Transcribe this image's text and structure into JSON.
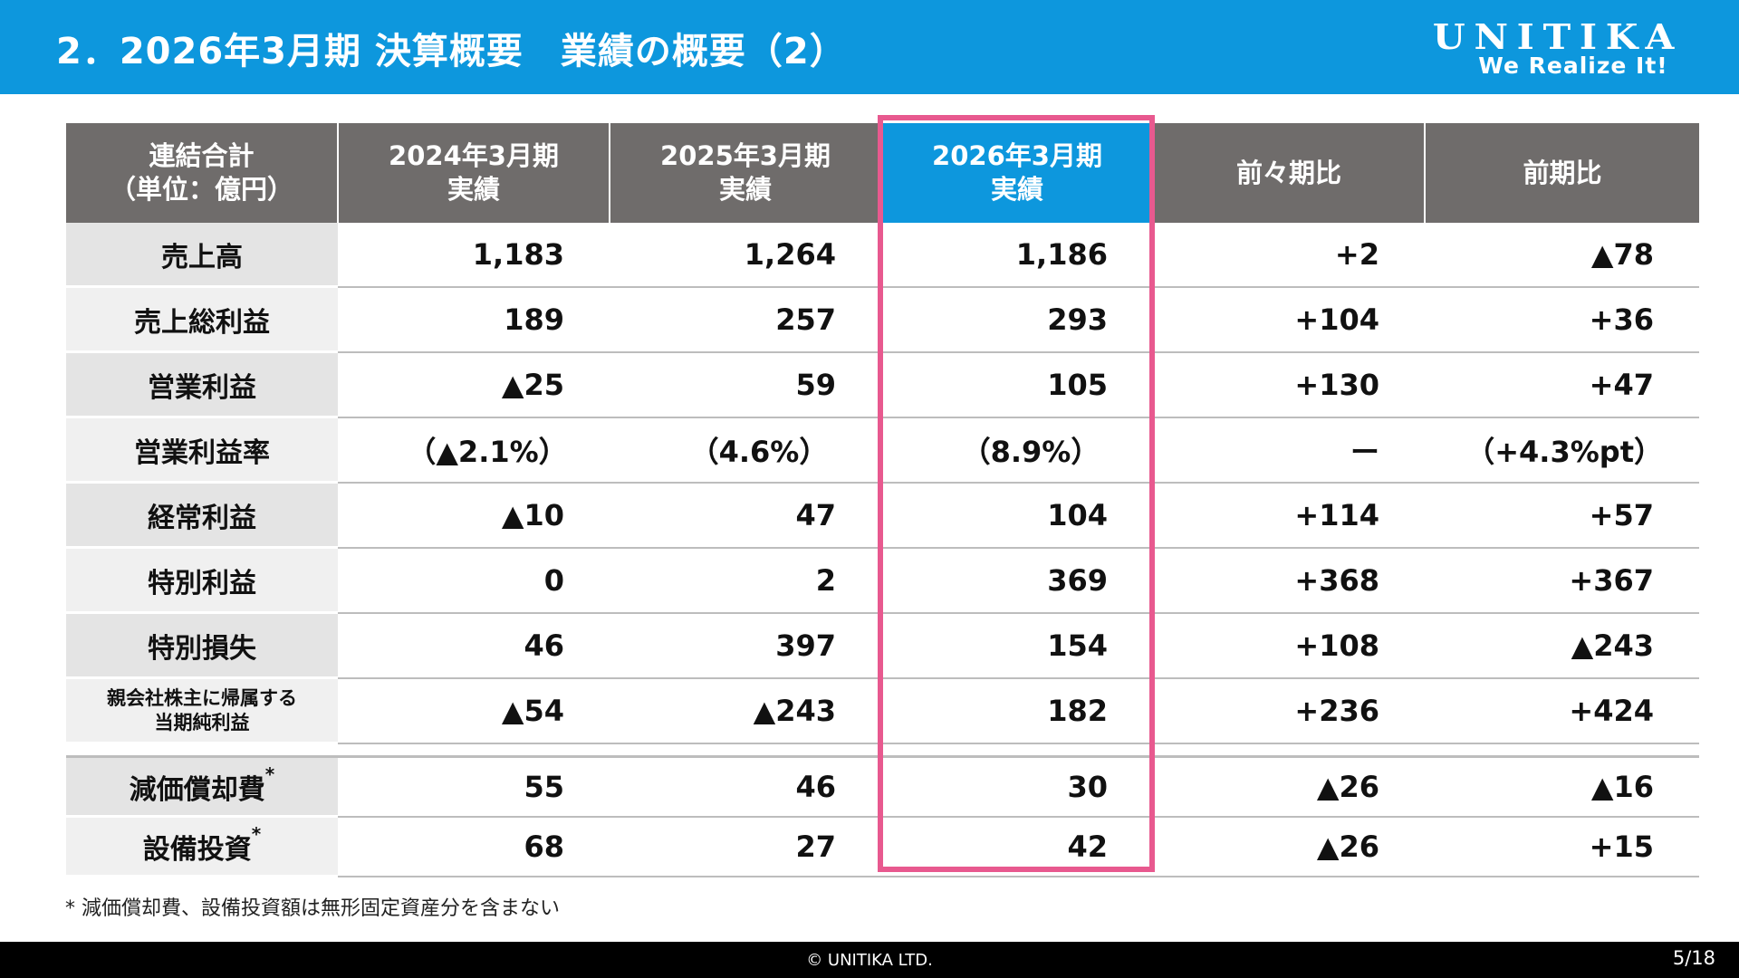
{
  "header": {
    "title": "2．2026年3月期 決算概要　業績の概要（2）",
    "logo_brand": "UNITIKA",
    "logo_tagline": "We Realize It!"
  },
  "table": {
    "columns": [
      {
        "line1": "連結合計",
        "line2": "（単位：億円）"
      },
      {
        "line1": "2024年3月期",
        "line2": "実績"
      },
      {
        "line1": "2025年3月期",
        "line2": "実績"
      },
      {
        "line1": "2026年3月期",
        "line2": "実績"
      },
      {
        "line1": "前々期比",
        "line2": ""
      },
      {
        "line1": "前期比",
        "line2": ""
      }
    ],
    "rows": [
      {
        "label": "売上高",
        "values": [
          "1,183",
          "1,264",
          "1,186",
          "+2",
          "▲78"
        ]
      },
      {
        "label": "売上総利益",
        "values": [
          "189",
          "257",
          "293",
          "+104",
          "+36"
        ]
      },
      {
        "label": "営業利益",
        "values": [
          "▲25",
          "59",
          "105",
          "+130",
          "+47"
        ]
      },
      {
        "label": "営業利益率",
        "values": [
          "（▲2.1%）",
          "（4.6%）",
          "（8.9%）",
          "ー",
          "（+4.3%pt）"
        ]
      },
      {
        "label": "経常利益",
        "values": [
          "▲10",
          "47",
          "104",
          "+114",
          "+57"
        ]
      },
      {
        "label": "特別利益",
        "values": [
          "0",
          "2",
          "369",
          "+368",
          "+367"
        ]
      },
      {
        "label": "特別損失",
        "values": [
          "46",
          "397",
          "154",
          "+108",
          "▲243"
        ]
      },
      {
        "label_line1": "親会社株主に帰属する",
        "label_line2": "当期純利益",
        "values": [
          "▲54",
          "▲243",
          "182",
          "+236",
          "+424"
        ]
      }
    ],
    "sub_rows": [
      {
        "label": "減価償却費",
        "mark": "*",
        "values": [
          "55",
          "46",
          "30",
          "▲26",
          "▲16"
        ]
      },
      {
        "label": "設備投資",
        "mark": "*",
        "values": [
          "68",
          "27",
          "42",
          "▲26",
          "+15"
        ]
      }
    ]
  },
  "note": "*  減価償却費、設備投資額は無形固定資産分を含まない",
  "footer": {
    "copyright": "© UNITIKA LTD.",
    "page": "5/18"
  },
  "colors": {
    "header_bg": "#0d97dd",
    "table_header_bg": "#6f6c6b",
    "highlight_header_bg": "#0d97dd",
    "highlight_border": "#e8598f",
    "label_cell_bg": "#e4e4e4"
  }
}
